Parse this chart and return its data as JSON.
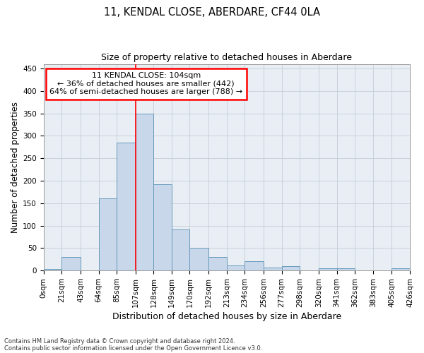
{
  "title1": "11, KENDAL CLOSE, ABERDARE, CF44 0LA",
  "title2": "Size of property relative to detached houses in Aberdare",
  "xlabel": "Distribution of detached houses by size in Aberdare",
  "ylabel": "Number of detached properties",
  "footnote1": "Contains HM Land Registry data © Crown copyright and database right 2024.",
  "footnote2": "Contains public sector information licensed under the Open Government Licence v3.0.",
  "annotation_line1": "11 KENDAL CLOSE: 104sqm",
  "annotation_line2": "← 36% of detached houses are smaller (442)",
  "annotation_line3": "64% of semi-detached houses are larger (788) →",
  "bar_color": "#c8d8ea",
  "bar_edge_color": "#6699bb",
  "redline_x": 107,
  "bins": [
    0,
    21,
    43,
    64,
    85,
    107,
    128,
    149,
    170,
    192,
    213,
    234,
    256,
    277,
    298,
    320,
    341,
    362,
    383,
    405,
    426
  ],
  "counts": [
    3,
    30,
    0,
    160,
    285,
    350,
    192,
    91,
    50,
    30,
    11,
    20,
    7,
    10,
    0,
    5,
    5,
    0,
    0,
    5
  ],
  "ylim": [
    0,
    460
  ],
  "yticks": [
    0,
    50,
    100,
    150,
    200,
    250,
    300,
    350,
    400,
    450
  ],
  "bg_color": "#e8eef4",
  "grid_color": "#c5cdd5",
  "title1_fontsize": 10.5,
  "title2_fontsize": 9,
  "xlabel_fontsize": 9,
  "ylabel_fontsize": 8.5,
  "tick_fontsize": 7.5,
  "ann_fontsize": 8
}
